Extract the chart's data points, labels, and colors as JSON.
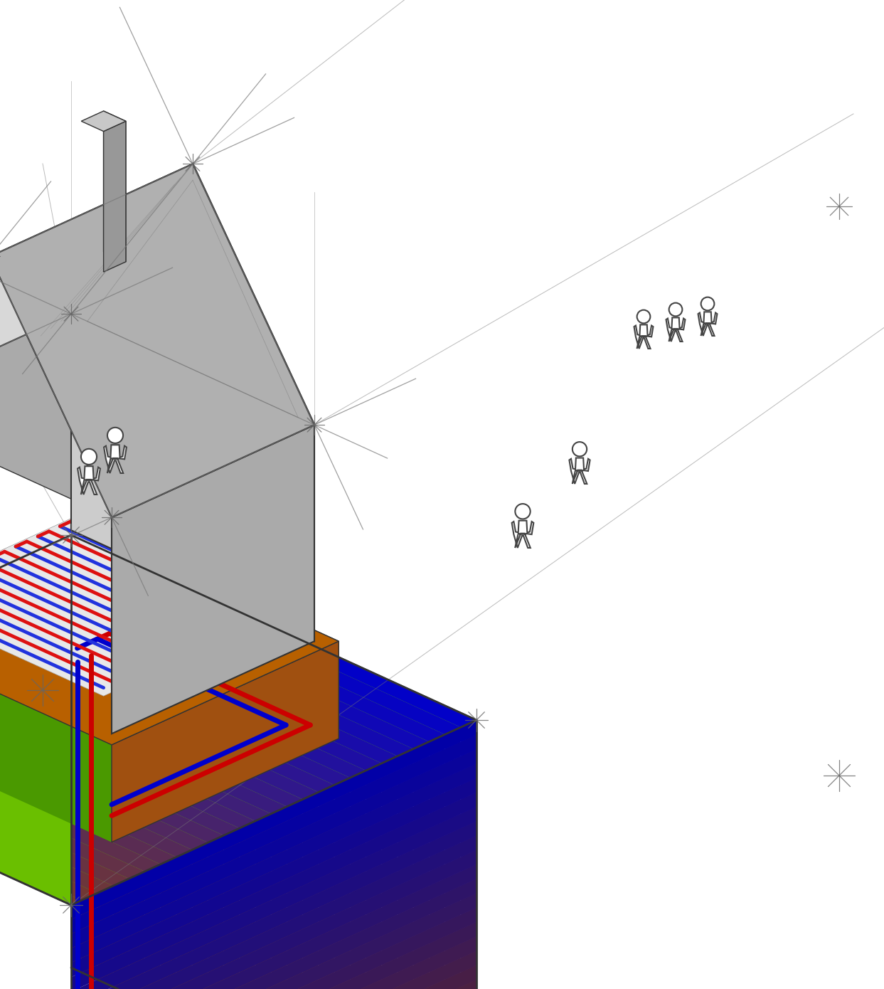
{
  "background_color": "#ffffff",
  "ground_top_color": "#6abf00",
  "grass_inner_color": "#5aaf00",
  "ground_front_top": "#8b4513",
  "ground_front_bot": "#0000cc",
  "ground_right_top": "#7a3500",
  "ground_right_bot": "#0000aa",
  "floor_heating_red": "#dd1111",
  "floor_heating_blue": "#2233dd",
  "pipe_red": "#cc0000",
  "pipe_blue": "#0000cc",
  "foundation_front": "#c87020",
  "foundation_right": "#a05010",
  "foundation_top": "#b86000",
  "wall_front": "#cccccc",
  "wall_right": "#aaaaaa",
  "roof_left": "#d8d8d8",
  "roof_right": "#b0b0b0",
  "gable_front": "#cccccc",
  "gable_back": "#aaaaaa",
  "sketch_color": "#777777",
  "edge_color": "#333333",
  "chimney_front": "#b0b0b0",
  "chimney_right": "#989898",
  "chimney_top": "#c8c8c8",
  "heat_pump_color": "#f0f0f0",
  "slab_color": "#e8e8e8",
  "figsize": [
    12.43,
    13.9
  ],
  "dpi": 100
}
